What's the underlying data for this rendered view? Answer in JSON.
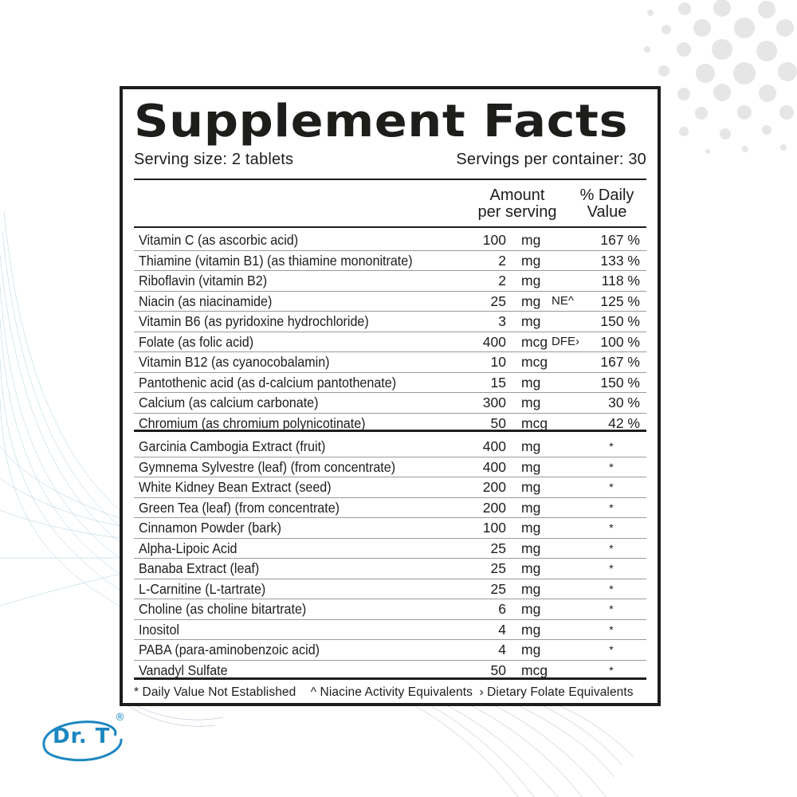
{
  "label": {
    "title": "Supplement Facts",
    "serving_size": "Serving size: 2 tablets",
    "servings_per_container": "Servings per container: 30",
    "columns": {
      "amount_line1": "Amount",
      "amount_line2": "per serving",
      "dv_line1": "% Daily",
      "dv_line2": "Value"
    },
    "vitamins": [
      {
        "name": "Vitamin C (as ascorbic acid)",
        "qty": "100",
        "unit": "mg",
        "note": "",
        "dv": "167 %"
      },
      {
        "name": "Thiamine (vitamin B1) (as thiamine mononitrate)",
        "qty": "2",
        "unit": "mg",
        "note": "",
        "dv": "133 %"
      },
      {
        "name": "Riboflavin (vitamin B2)",
        "qty": "2",
        "unit": "mg",
        "note": "",
        "dv": "118 %"
      },
      {
        "name": "Niacin (as niacinamide)",
        "qty": "25",
        "unit": "mg",
        "note": "NE^",
        "dv": "125 %"
      },
      {
        "name": "Vitamin B6 (as pyridoxine hydrochloride)",
        "qty": "3",
        "unit": "mg",
        "note": "",
        "dv": "150 %"
      },
      {
        "name": "Folate (as folic acid)",
        "qty": "400",
        "unit": "mcg",
        "note": "DFE›",
        "dv": "100 %"
      },
      {
        "name": "Vitamin B12 (as cyanocobalamin)",
        "qty": "10",
        "unit": "mcg",
        "note": "",
        "dv": "167 %"
      },
      {
        "name": "Pantothenic acid (as d-calcium pantothenate)",
        "qty": "15",
        "unit": "mg",
        "note": "",
        "dv": "150 %"
      },
      {
        "name": "Calcium (as calcium carbonate)",
        "qty": "300",
        "unit": "mg",
        "note": "",
        "dv": "30 %"
      },
      {
        "name": "Chromium (as chromium polynicotinate)",
        "qty": "50",
        "unit": "mcg",
        "note": "",
        "dv": "42 %"
      }
    ],
    "others": [
      {
        "name": "Garcinia Cambogia Extract (fruit)",
        "qty": "400",
        "unit": "mg",
        "dv": "*"
      },
      {
        "name": "Gymnema Sylvestre (leaf) (from concentrate)",
        "qty": "400",
        "unit": "mg",
        "dv": "*"
      },
      {
        "name": "White Kidney Bean Extract (seed)",
        "qty": "200",
        "unit": "mg",
        "dv": "*"
      },
      {
        "name": "Green Tea (leaf) (from concentrate)",
        "qty": "200",
        "unit": "mg",
        "dv": "*"
      },
      {
        "name": "Cinnamon Powder (bark)",
        "qty": "100",
        "unit": "mg",
        "dv": "*"
      },
      {
        "name": "Alpha-Lipoic Acid",
        "qty": "25",
        "unit": "mg",
        "dv": "*"
      },
      {
        "name": "Banaba Extract (leaf)",
        "qty": "25",
        "unit": "mg",
        "dv": "*"
      },
      {
        "name": "L-Carnitine (L-tartrate)",
        "qty": "25",
        "unit": "mg",
        "dv": "*"
      },
      {
        "name": "Choline (as choline bitartrate)",
        "qty": "6",
        "unit": "mg",
        "dv": "*"
      },
      {
        "name": "Inositol",
        "qty": "4",
        "unit": "mg",
        "dv": "*"
      },
      {
        "name": "PABA (para-aminobenzoic acid)",
        "qty": "4",
        "unit": "mg",
        "dv": "*"
      },
      {
        "name": "Vanadyl Sulfate",
        "qty": "50",
        "unit": "mcg",
        "dv": "*"
      }
    ],
    "footnotes": {
      "star": "* Daily Value Not Established",
      "niacin": "^ Niacine Activity Equivalents",
      "folate": "› Dietary Folate Equivalents"
    }
  },
  "brand": {
    "logo_text": "Dr. T",
    "registered_mark": "®",
    "color": "#1c87c0"
  },
  "colors": {
    "ink": "#1d1d1b",
    "dots": "#e6e6e6",
    "wave_blue": "#6aa7c0",
    "wave_purple": "#7d7aa8"
  }
}
